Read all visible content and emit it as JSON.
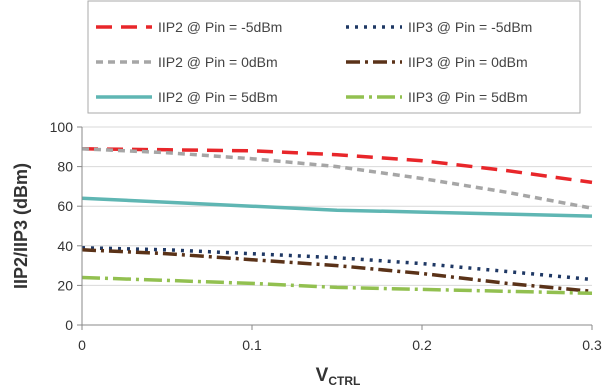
{
  "chart_data": {
    "type": "line",
    "title": "",
    "xlabel": "V",
    "xlabel_sub": "CTRL",
    "ylabel": "IIP2/IIP3 (dBm)",
    "xlim": [
      0,
      0.3
    ],
    "ylim": [
      0,
      100
    ],
    "x_ticks": [
      "0",
      "0.1",
      "0.2",
      "0.3"
    ],
    "y_ticks": [
      "0",
      "20",
      "40",
      "60",
      "80",
      "100"
    ],
    "grid": "horizontal",
    "legend_position": "top",
    "x": [
      0,
      0.05,
      0.1,
      0.15,
      0.2,
      0.25,
      0.3
    ],
    "series": [
      {
        "name": "IIP2 @ Pin = -5dBm",
        "color": "#e8262a",
        "dash": "dash",
        "values": [
          89,
          88.5,
          88,
          86,
          83,
          78,
          72
        ]
      },
      {
        "name": "IIP3 @ Pin = -5dBm",
        "color": "#1f3864",
        "dash": "dot",
        "values": [
          39,
          38,
          36,
          34,
          31,
          27,
          23
        ]
      },
      {
        "name": "IIP2 @ Pin = 0dBm",
        "color": "#a6a6a6",
        "dash": "short-dash",
        "values": [
          89,
          87,
          84,
          80,
          74,
          67,
          59
        ]
      },
      {
        "name": "IIP3 @ Pin = 0dBm",
        "color": "#5a3218",
        "dash": "dash-dot",
        "values": [
          38,
          36,
          33,
          30,
          26,
          21,
          17
        ]
      },
      {
        "name": "IIP2 @ Pin = 5dBm",
        "color": "#5fb6b3",
        "dash": "solid",
        "values": [
          64,
          62,
          60,
          58,
          57,
          56,
          55
        ]
      },
      {
        "name": "IIP3 @ Pin = 5dBm",
        "color": "#92c050",
        "dash": "long-dash-dot",
        "values": [
          24,
          22.5,
          21,
          19,
          18,
          17,
          16
        ]
      }
    ]
  }
}
